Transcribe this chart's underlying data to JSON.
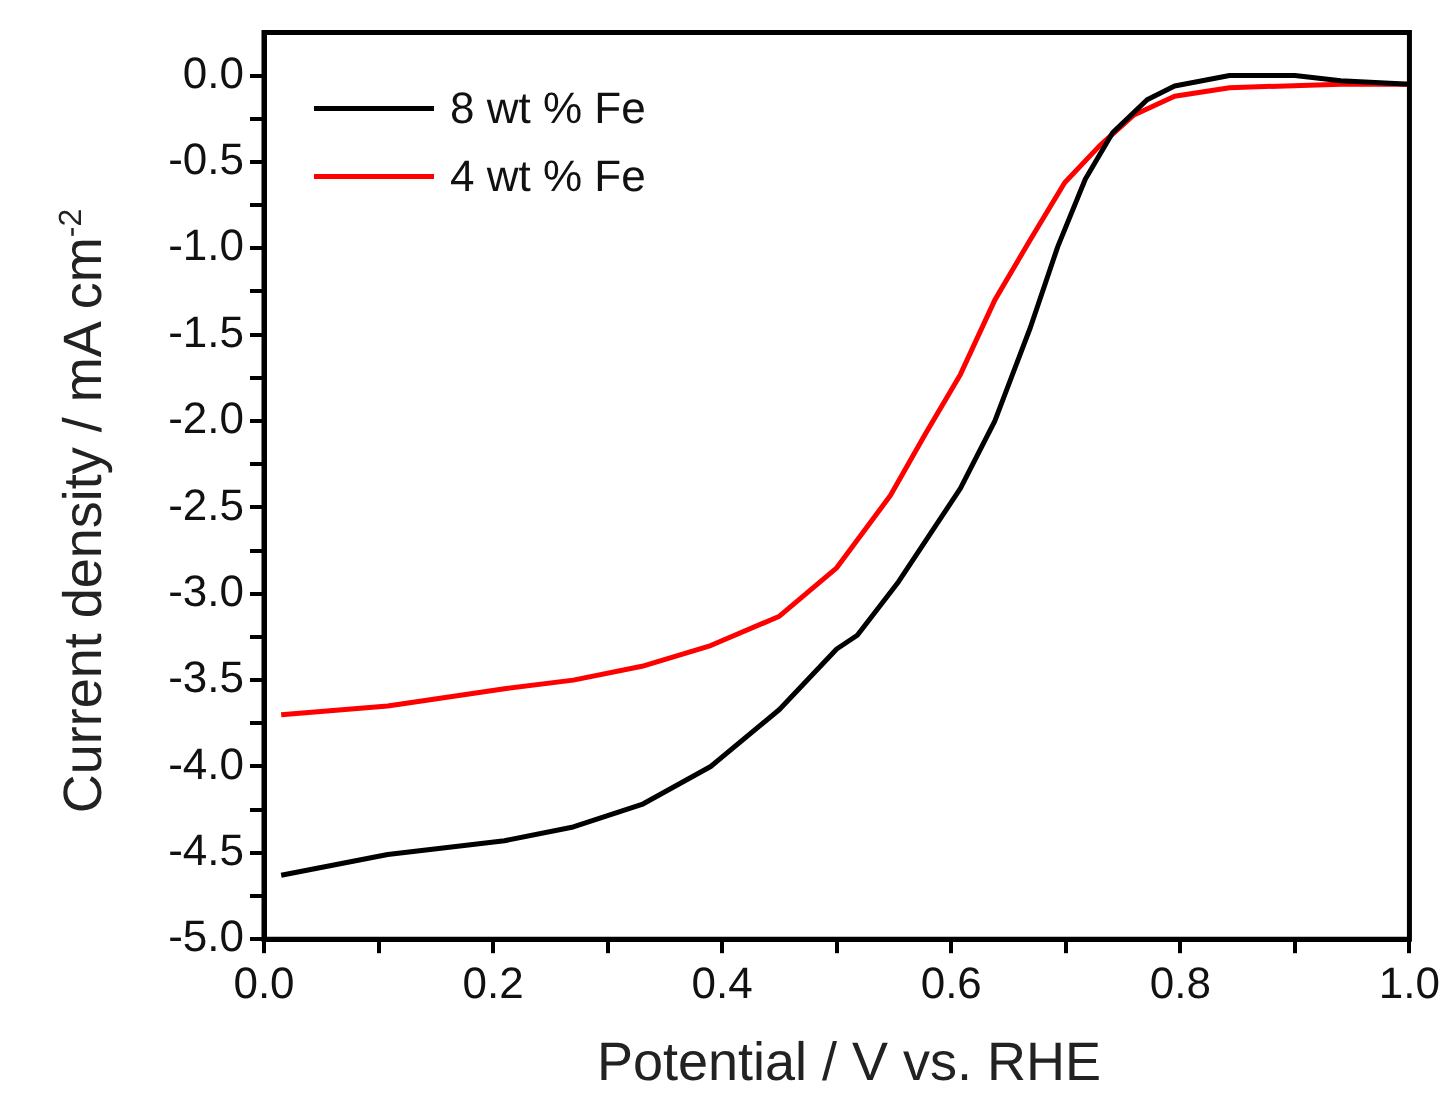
{
  "chart_data": {
    "type": "line",
    "xlabel": "Potential / V vs. RHE",
    "ylabel": "Current density / mA cm$^{-2}$",
    "xlim": [
      0,
      1
    ],
    "ylim": [
      -5,
      0.25
    ],
    "xticks": [
      {
        "value": 0,
        "label": "0.0"
      },
      {
        "value": 0.1,
        "label": null
      },
      0.2,
      {
        "value": 0.3,
        "label": null
      },
      0.4,
      {
        "value": 0.5,
        "label": null
      },
      0.6,
      {
        "value": 0.7,
        "label": null
      },
      0.8,
      {
        "value": 0.9,
        "label": null
      },
      {
        "value": 1,
        "label": "1.0"
      }
    ],
    "yticks": [
      {
        "value": -5,
        "label": "-5.0"
      },
      {
        "value": -4.75,
        "label": null
      },
      {
        "value": -4.5,
        "label": "-4.5"
      },
      {
        "value": -4.25,
        "label": null
      },
      {
        "value": -4,
        "label": "-4.0"
      },
      {
        "value": -3.75,
        "label": null
      },
      {
        "value": -3.5,
        "label": "-3.5"
      },
      {
        "value": -3.25,
        "label": null
      },
      {
        "value": -3,
        "label": "-3.0"
      },
      {
        "value": -2.75,
        "label": null
      },
      {
        "value": -2.5,
        "label": "-2.5"
      },
      {
        "value": -2.25,
        "label": null
      },
      {
        "value": -2,
        "label": "-2.0"
      },
      {
        "value": -1.75,
        "label": null
      },
      {
        "value": -1.5,
        "label": "-1.5"
      },
      {
        "value": -1.25,
        "label": null
      },
      {
        "value": -1,
        "label": "-1.0"
      },
      {
        "value": -0.75,
        "label": null
      },
      {
        "value": -0.5,
        "label": "-0.5"
      },
      {
        "value": -0.25,
        "label": null
      },
      {
        "value": 0,
        "label": "0.0"
      }
    ],
    "grid": false,
    "legend": "top left",
    "marker": "none",
    "line_style": "solid",
    "series": [
      {
        "name": "8 wt % Fe",
        "color": "#000000",
        "x": [
          0.015,
          0.108,
          0.21,
          0.27,
          0.33,
          0.39,
          0.45,
          0.5,
          0.518,
          0.554,
          0.608,
          0.638,
          0.669,
          0.693,
          0.717,
          0.741,
          0.771,
          0.795,
          0.843,
          0.9,
          0.94,
          1.0
        ],
        "values": [
          -4.63,
          -4.51,
          -4.43,
          -4.35,
          -4.22,
          -4.0,
          -3.67,
          -3.32,
          -3.24,
          -2.93,
          -2.39,
          -2.0,
          -1.46,
          -0.99,
          -0.6,
          -0.33,
          -0.14,
          -0.06,
          0.0,
          0.0,
          -0.03,
          -0.05
        ]
      },
      {
        "name": "4 wt % Fe",
        "color": "#ff0000",
        "x": [
          0.015,
          0.108,
          0.21,
          0.27,
          0.33,
          0.39,
          0.45,
          0.5,
          0.547,
          0.577,
          0.608,
          0.638,
          0.669,
          0.699,
          0.729,
          0.759,
          0.795,
          0.843,
          0.94,
          1.0
        ],
        "values": [
          -3.7,
          -3.65,
          -3.55,
          -3.5,
          -3.42,
          -3.3,
          -3.13,
          -2.85,
          -2.43,
          -2.08,
          -1.73,
          -1.3,
          -0.95,
          -0.62,
          -0.41,
          -0.23,
          -0.12,
          -0.07,
          -0.05,
          -0.05
        ]
      }
    ]
  }
}
